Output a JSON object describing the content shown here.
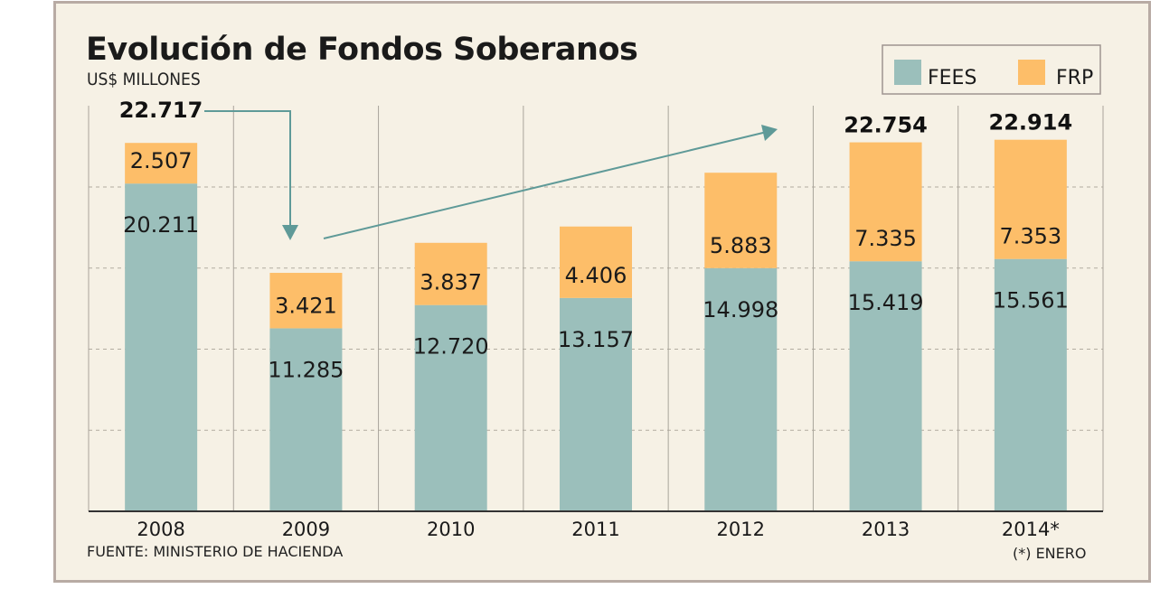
{
  "chart_data": {
    "type": "bar",
    "stacked": true,
    "title": "Evolución de Fondos Soberanos",
    "subtitle": "US$ MILLONES",
    "categories": [
      "2008",
      "2009",
      "2010",
      "2011",
      "2012",
      "2013",
      "2014*"
    ],
    "series": [
      {
        "name": "FEES",
        "color": "#9bbfbb",
        "values": [
          20211,
          11285,
          12720,
          13157,
          14998,
          15419,
          15561
        ],
        "labels": [
          "20.211",
          "11.285",
          "12.720",
          "13.157",
          "14.998",
          "15.419",
          "15.561"
        ]
      },
      {
        "name": "FRP",
        "color": "#fdbe69",
        "values": [
          2507,
          3421,
          3837,
          4406,
          5883,
          7335,
          7353
        ],
        "labels": [
          "2.507",
          "3.421",
          "3.837",
          "4.406",
          "5.883",
          "7.335",
          "7.353"
        ]
      }
    ],
    "totals": [
      {
        "category": "2008",
        "label": "22.717"
      },
      {
        "category": "2013",
        "label": "22.754"
      },
      {
        "category": "2014*",
        "label": "22.914"
      }
    ],
    "ylim": [
      0,
      25000
    ],
    "grid": "dashed horizontal",
    "legend_position": "top-right",
    "source": "FUENTE: MINISTERIO DE HACIENDA",
    "footnote": "(*) ENERO",
    "annotation_color": "#5f9a98"
  }
}
